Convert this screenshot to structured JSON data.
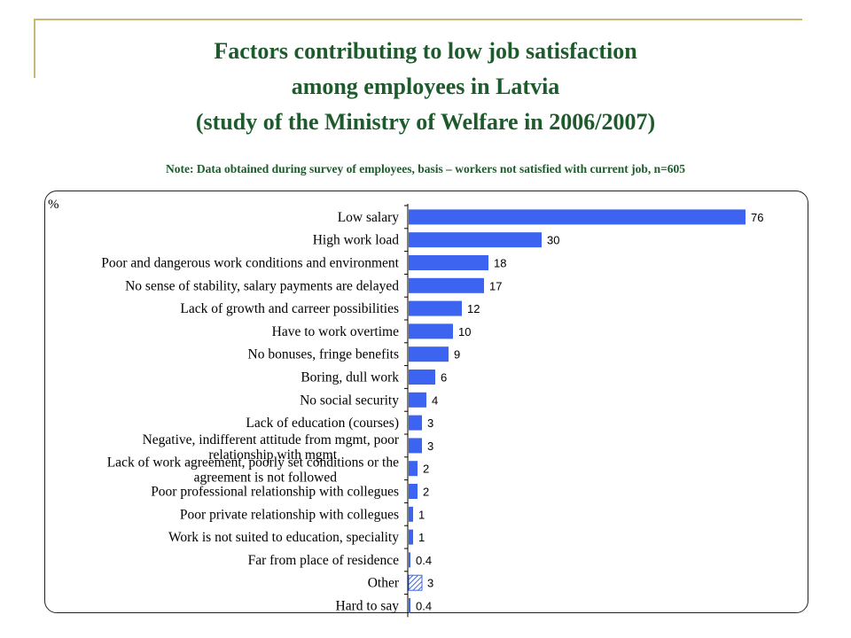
{
  "title_lines": [
    "Factors contributing to low job satisfaction",
    "among employees in Latvia",
    "(study of the Ministry of Welfare in 2006/2007)"
  ],
  "note": "Note: Data obtained during survey of employees, basis – workers not satisfied with current job, n=605",
  "colors": {
    "bar": "#3c64f0",
    "text_green": "#1e5b2c",
    "accent_line": "#c8b873"
  },
  "chart_data": {
    "type": "bar",
    "orientation": "horizontal",
    "unit_label": "%",
    "categories": [
      "Low salary",
      "High work load",
      "Poor and dangerous work conditions and environment",
      "No sense of stability, salary payments are delayed",
      "Lack of growth and carreer possibilities",
      "Have to work overtime",
      "No bonuses, fringe benefits",
      "Boring, dull work",
      "No social security",
      "Lack of education (courses)",
      "Negative, indifferent attitude from mgmt, poor relationship with mgmt",
      "Lack of work agreement, poorly set conditions or the agreement is not followed",
      "Poor professional relationship with collegues",
      "Poor private relationship with collegues",
      "Work is not suited to education, speciality",
      "Far from place of residence",
      "Other",
      "Hard to say"
    ],
    "category_lines": [
      [
        "Low salary"
      ],
      [
        "High work load"
      ],
      [
        "Poor and dangerous work conditions and environment"
      ],
      [
        "No sense of stability, salary payments are delayed"
      ],
      [
        "Lack of growth and carreer possibilities"
      ],
      [
        "Have to work overtime"
      ],
      [
        "No bonuses, fringe benefits"
      ],
      [
        "Boring, dull work"
      ],
      [
        "No social security"
      ],
      [
        "Lack of education (courses)"
      ],
      [
        "Negative, indifferent attitude from mgmt, poor",
        "relationship with mgmt"
      ],
      [
        "Lack of work agreement, poorly set conditions or the",
        "agreement is not followed"
      ],
      [
        "Poor professional relationship with collegues"
      ],
      [
        "Poor private relationship with collegues"
      ],
      [
        "Work is not suited to education, speciality"
      ],
      [
        "Far from place of residence"
      ],
      [
        "Other"
      ],
      [
        "Hard to say"
      ]
    ],
    "values": [
      76,
      30,
      18,
      17,
      12,
      10,
      9,
      6,
      4,
      3,
      3,
      2,
      2,
      1,
      1,
      0.4,
      3,
      0.4
    ],
    "value_labels": [
      "76",
      "30",
      "18",
      "17",
      "12",
      "10",
      "9",
      "6",
      "4",
      "3",
      "3",
      "2",
      "2",
      "1",
      "1",
      "0.4",
      "3",
      "0.4"
    ],
    "hatched": [
      false,
      false,
      false,
      false,
      false,
      false,
      false,
      false,
      false,
      false,
      false,
      false,
      false,
      false,
      false,
      false,
      true,
      false
    ],
    "xlim": [
      0,
      76
    ]
  }
}
